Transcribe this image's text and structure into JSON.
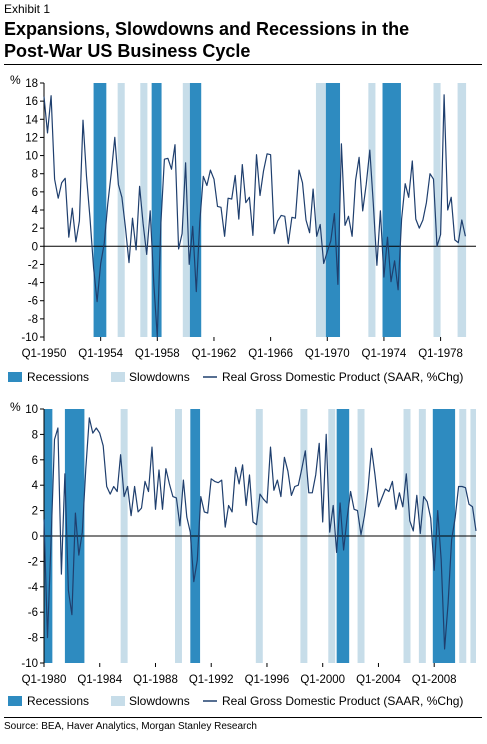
{
  "header": {
    "exhibit": "Exhibit 1",
    "title_line1": "Expansions, Slowdowns and Recessions in the",
    "title_line2": "Post-War US Business Cycle"
  },
  "source": "Source: BEA, Haver Analytics, Morgan Stanley Research",
  "colors": {
    "recession": "#2e8bc0",
    "slowdown": "#c7dde9",
    "line": "#1f3f6e",
    "zero": "#000000"
  },
  "chart_data": [
    {
      "type": "line",
      "unit_label": "%",
      "ylim": [
        -10,
        18
      ],
      "yticks": [
        -10,
        -8,
        -6,
        -4,
        -2,
        0,
        2,
        4,
        6,
        8,
        10,
        12,
        14,
        16,
        18
      ],
      "xlim": [
        1950.0,
        1980.5
      ],
      "xticks": [
        {
          "x": 1950,
          "label": "Q1-1950"
        },
        {
          "x": 1954,
          "label": "Q1-1954"
        },
        {
          "x": 1958,
          "label": "Q1-1958"
        },
        {
          "x": 1962,
          "label": "Q1-1962"
        },
        {
          "x": 1966,
          "label": "Q1-1966"
        },
        {
          "x": 1970,
          "label": "Q1-1970"
        },
        {
          "x": 1974,
          "label": "Q1-1974"
        },
        {
          "x": 1978,
          "label": "Q1-1978"
        }
      ],
      "legend": {
        "position": "bottom",
        "entries": [
          "Recessions",
          "Slowdowns",
          "Real Gross Domestic Product (SAAR, %Chg)"
        ]
      },
      "recessions": [
        [
          1953.5,
          1954.4
        ],
        [
          1957.6,
          1958.3
        ],
        [
          1960.3,
          1961.1
        ],
        [
          1969.9,
          1970.9
        ],
        [
          1973.9,
          1975.2
        ]
      ],
      "slowdowns": [
        [
          1955.2,
          1955.7
        ],
        [
          1956.8,
          1957.3
        ],
        [
          1959.8,
          1960.3
        ],
        [
          1969.2,
          1969.9
        ],
        [
          1972.9,
          1973.4
        ],
        [
          1977.5,
          1978.0
        ],
        [
          1979.2,
          1979.8
        ]
      ],
      "series": [
        {
          "values": [
            [
              1950.0,
              16.5
            ],
            [
              1950.25,
              12.5
            ],
            [
              1950.5,
              16.6
            ],
            [
              1950.75,
              7.4
            ],
            [
              1951.0,
              5.3
            ],
            [
              1951.25,
              7.0
            ],
            [
              1951.5,
              7.5
            ],
            [
              1951.75,
              1.0
            ],
            [
              1952.0,
              4.2
            ],
            [
              1952.25,
              0.5
            ],
            [
              1952.5,
              2.8
            ],
            [
              1952.75,
              13.9
            ],
            [
              1953.0,
              7.7
            ],
            [
              1953.25,
              3.1
            ],
            [
              1953.5,
              -2.4
            ],
            [
              1953.75,
              -6.1
            ],
            [
              1954.0,
              -1.9
            ],
            [
              1954.25,
              0.3
            ],
            [
              1954.5,
              4.6
            ],
            [
              1954.75,
              8.1
            ],
            [
              1955.0,
              12.0
            ],
            [
              1955.25,
              6.8
            ],
            [
              1955.5,
              5.4
            ],
            [
              1955.75,
              2.1
            ],
            [
              1956.0,
              -1.8
            ],
            [
              1956.25,
              3.1
            ],
            [
              1956.5,
              -0.4
            ],
            [
              1956.75,
              6.6
            ],
            [
              1957.0,
              2.5
            ],
            [
              1957.25,
              -0.9
            ],
            [
              1957.5,
              3.9
            ],
            [
              1957.75,
              -4.1
            ],
            [
              1958.0,
              -10.0
            ],
            [
              1958.25,
              2.6
            ],
            [
              1958.5,
              9.6
            ],
            [
              1958.75,
              9.7
            ],
            [
              1959.0,
              8.5
            ],
            [
              1959.25,
              11.2
            ],
            [
              1959.5,
              -0.3
            ],
            [
              1959.75,
              1.4
            ],
            [
              1960.0,
              9.2
            ],
            [
              1960.25,
              -2.0
            ],
            [
              1960.5,
              2.2
            ],
            [
              1960.75,
              -5.0
            ],
            [
              1961.0,
              2.7
            ],
            [
              1961.25,
              7.7
            ],
            [
              1961.5,
              6.7
            ],
            [
              1961.75,
              8.4
            ],
            [
              1962.0,
              7.4
            ],
            [
              1962.25,
              4.4
            ],
            [
              1962.5,
              4.3
            ],
            [
              1962.75,
              1.1
            ],
            [
              1963.0,
              5.3
            ],
            [
              1963.25,
              5.2
            ],
            [
              1963.5,
              7.8
            ],
            [
              1963.75,
              3.0
            ],
            [
              1964.0,
              9.0
            ],
            [
              1964.25,
              4.8
            ],
            [
              1964.5,
              5.4
            ],
            [
              1964.75,
              1.2
            ],
            [
              1965.0,
              10.1
            ],
            [
              1965.25,
              5.6
            ],
            [
              1965.5,
              8.3
            ],
            [
              1965.75,
              10.2
            ],
            [
              1966.0,
              10.1
            ],
            [
              1966.25,
              1.4
            ],
            [
              1966.5,
              2.8
            ],
            [
              1966.75,
              3.4
            ],
            [
              1967.0,
              3.3
            ],
            [
              1967.25,
              0.3
            ],
            [
              1967.5,
              3.2
            ],
            [
              1967.75,
              3.1
            ],
            [
              1968.0,
              8.4
            ],
            [
              1968.25,
              7.0
            ],
            [
              1968.5,
              2.9
            ],
            [
              1968.75,
              1.5
            ],
            [
              1969.0,
              6.3
            ],
            [
              1969.25,
              1.1
            ],
            [
              1969.5,
              2.4
            ],
            [
              1969.75,
              -1.9
            ],
            [
              1970.0,
              -0.6
            ],
            [
              1970.25,
              0.6
            ],
            [
              1970.5,
              3.6
            ],
            [
              1970.75,
              -4.2
            ],
            [
              1971.0,
              11.3
            ],
            [
              1971.25,
              2.3
            ],
            [
              1971.5,
              3.3
            ],
            [
              1971.75,
              1.1
            ],
            [
              1972.0,
              7.3
            ],
            [
              1972.25,
              9.8
            ],
            [
              1972.5,
              3.9
            ],
            [
              1972.75,
              6.8
            ],
            [
              1973.0,
              10.6
            ],
            [
              1973.25,
              4.7
            ],
            [
              1973.5,
              -2.1
            ],
            [
              1973.75,
              3.9
            ],
            [
              1974.0,
              -3.4
            ],
            [
              1974.25,
              1.0
            ],
            [
              1974.5,
              -3.9
            ],
            [
              1974.75,
              -1.6
            ],
            [
              1975.0,
              -4.8
            ],
            [
              1975.25,
              3.0
            ],
            [
              1975.5,
              6.9
            ],
            [
              1975.75,
              5.4
            ],
            [
              1976.0,
              9.4
            ],
            [
              1976.25,
              3.0
            ],
            [
              1976.5,
              2.0
            ],
            [
              1976.75,
              2.9
            ],
            [
              1977.0,
              4.8
            ],
            [
              1977.25,
              8.0
            ],
            [
              1977.5,
              7.4
            ],
            [
              1977.75,
              0.0
            ],
            [
              1978.0,
              1.3
            ],
            [
              1978.25,
              16.7
            ],
            [
              1978.5,
              4.0
            ],
            [
              1978.75,
              5.4
            ],
            [
              1979.0,
              0.7
            ],
            [
              1979.25,
              0.4
            ],
            [
              1979.5,
              2.9
            ],
            [
              1979.75,
              1.1
            ]
          ]
        }
      ]
    },
    {
      "type": "line",
      "unit_label": "%",
      "ylim": [
        -10,
        10
      ],
      "yticks": [
        -10,
        -8,
        -6,
        -4,
        -2,
        0,
        2,
        4,
        6,
        8,
        10
      ],
      "xlim": [
        1980.0,
        2011.0
      ],
      "xticks": [
        {
          "x": 1980,
          "label": "Q1-1980"
        },
        {
          "x": 1984,
          "label": "Q1-1984"
        },
        {
          "x": 1988,
          "label": "Q1-1988"
        },
        {
          "x": 1992,
          "label": "Q1-1992"
        },
        {
          "x": 1996,
          "label": "Q1-1996"
        },
        {
          "x": 2000,
          "label": "Q1-2000"
        },
        {
          "x": 2004,
          "label": "Q1-2004"
        },
        {
          "x": 2008,
          "label": "Q1-2008"
        }
      ],
      "legend": {
        "position": "bottom",
        "entries": [
          "Recessions",
          "Slowdowns",
          "Real Gross Domestic Product (SAAR, %Chg)"
        ]
      },
      "recessions": [
        [
          1980.0,
          1980.6
        ],
        [
          1981.5,
          1982.9
        ],
        [
          1990.5,
          1991.2
        ],
        [
          2001.0,
          2001.9
        ],
        [
          2007.9,
          2009.5
        ]
      ],
      "slowdowns": [
        [
          1985.5,
          1986.0
        ],
        [
          1989.4,
          1989.9
        ],
        [
          1995.2,
          1995.7
        ],
        [
          1998.4,
          1998.9
        ],
        [
          2000.4,
          2000.9
        ],
        [
          2002.5,
          2003.0
        ],
        [
          2005.8,
          2006.3
        ],
        [
          2006.9,
          2007.4
        ],
        [
          2009.8,
          2010.3
        ],
        [
          2010.6,
          2011.0
        ]
      ]
    }
  ]
}
